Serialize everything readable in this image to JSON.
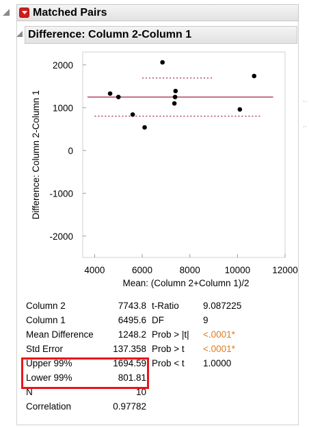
{
  "report": {
    "outer_title": "Matched Pairs",
    "inner_title": "Difference: Column 2-Column 1"
  },
  "chart_data": {
    "type": "scatter",
    "xlabel": "Mean: (Column 2+Column 1)/2",
    "ylabel": "Difference: Column 2-Column 1",
    "xlim": [
      3500,
      12000
    ],
    "ylim": [
      -2500,
      2300
    ],
    "x_ticks": [
      4000,
      6000,
      8000,
      10000,
      12000
    ],
    "y_ticks": [
      2000,
      1000,
      0,
      -1000,
      -2000
    ],
    "points": [
      {
        "x": 4650,
        "y": 1330
      },
      {
        "x": 5000,
        "y": 1250
      },
      {
        "x": 5600,
        "y": 840
      },
      {
        "x": 6100,
        "y": 540
      },
      {
        "x": 6850,
        "y": 2060
      },
      {
        "x": 7350,
        "y": 1100
      },
      {
        "x": 7380,
        "y": 1250
      },
      {
        "x": 7400,
        "y": 1390
      },
      {
        "x": 10100,
        "y": 960
      },
      {
        "x": 10700,
        "y": 1740
      }
    ],
    "mean_difference": 1248.2,
    "mean_line_x": [
      3700,
      11500
    ],
    "upper_ci_line": {
      "y": 1694.59,
      "x": [
        6000,
        9000
      ]
    },
    "lower_ci_line": {
      "y": 801.81,
      "x": [
        4000,
        11000
      ]
    },
    "line_color": "#a0203a"
  },
  "stats": {
    "left": [
      {
        "label": "Column 2",
        "value": "7743.8"
      },
      {
        "label": "Column 1",
        "value": "6495.6"
      },
      {
        "label": "Mean Difference",
        "value": "1248.2"
      },
      {
        "label": "Std Error",
        "value": "137.358"
      },
      {
        "label": "Upper 99%",
        "value": "1694.59"
      },
      {
        "label": "Lower 99%",
        "value": "801.81"
      },
      {
        "label": "N",
        "value": "10"
      },
      {
        "label": "Correlation",
        "value": "0.97782"
      }
    ],
    "right": [
      {
        "label": "t-Ratio",
        "value": "9.087225",
        "highlight": false
      },
      {
        "label": "DF",
        "value": "9",
        "highlight": false
      },
      {
        "label": "Prob > |t|",
        "value": "<.0001*",
        "highlight": true
      },
      {
        "label": "Prob > t",
        "value": "<.0001*",
        "highlight": true
      },
      {
        "label": "Prob < t",
        "value": "1.0000",
        "highlight": false
      }
    ],
    "highlight_color": "#e8141c"
  }
}
